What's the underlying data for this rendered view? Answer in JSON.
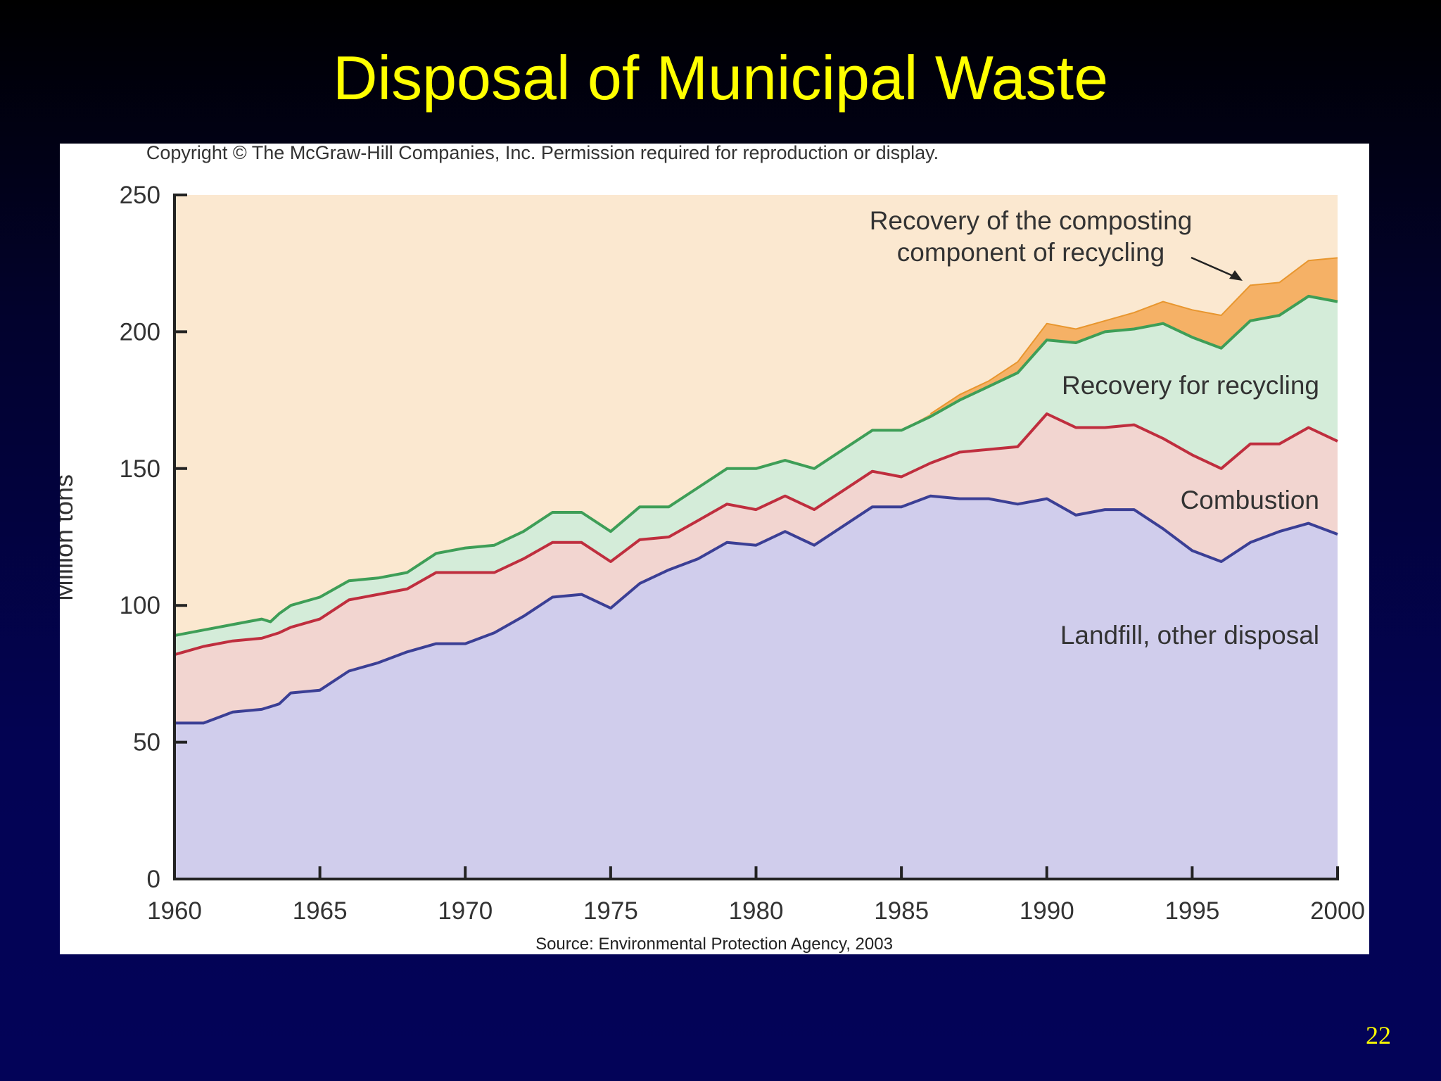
{
  "slide": {
    "title": "Disposal of Municipal Waste",
    "page_number": "22"
  },
  "figure": {
    "copyright": "Copyright © The McGraw-Hill Companies, Inc. Permission required for reproduction or display.",
    "source": "Source: Environmental Protection Agency, 2003"
  },
  "colors": {
    "landfill_fill": "#d0cdec",
    "landfill_line": "#3b3f95",
    "combustion_fill": "#f2d5d0",
    "combustion_line": "#bf2e3e",
    "recycling_fill": "#d4ecd9",
    "recycling_line": "#3e9e57",
    "composting_fill": "#f5b166",
    "composting_line": "#e8962e",
    "background_fill": "#fbe8d0"
  },
  "chart_data": {
    "type": "area",
    "stacked": true,
    "ylabel": "Million tons",
    "xlabel": "",
    "xlim": [
      1960,
      2000
    ],
    "ylim": [
      0,
      250
    ],
    "x_ticks": [
      "1960",
      "1965",
      "1970",
      "1975",
      "1980",
      "1985",
      "1990",
      "1995",
      "2000"
    ],
    "y_ticks": [
      "0",
      "50",
      "100",
      "150",
      "200",
      "250"
    ],
    "grid": false,
    "legend": "none",
    "annotations": [
      "Recovery of the composting",
      "component of recycling",
      "Recovery for recycling",
      "Combustion",
      "Landfill, other disposal"
    ],
    "x": [
      1960,
      1961,
      1962,
      1963,
      1963.3,
      1963.6,
      1964,
      1965,
      1966,
      1967,
      1968,
      1969,
      1970,
      1971,
      1972,
      1973,
      1974,
      1975,
      1976,
      1977,
      1978,
      1979,
      1980,
      1981,
      1982,
      1983,
      1984,
      1985,
      1986,
      1987,
      1988,
      1989,
      1990,
      1991,
      1992,
      1993,
      1994,
      1995,
      1996,
      1997,
      1998,
      1999,
      2000
    ],
    "series": [
      {
        "name": "Landfill, other disposal",
        "values": [
          57,
          57,
          61,
          62,
          63,
          64,
          68,
          69,
          76,
          79,
          83,
          86,
          86,
          90,
          96,
          103,
          104,
          99,
          108,
          113,
          117,
          123,
          122,
          127,
          122,
          129,
          136,
          136,
          140,
          139,
          139,
          137,
          139,
          133,
          135,
          135,
          128,
          120,
          116,
          123,
          127,
          130,
          126
        ]
      },
      {
        "name": "Combustion",
        "values": [
          82,
          85,
          87,
          88,
          89,
          90,
          92,
          95,
          102,
          104,
          106,
          112,
          112,
          112,
          117,
          123,
          123,
          116,
          124,
          125,
          131,
          137,
          135,
          140,
          135,
          142,
          149,
          147,
          152,
          156,
          157,
          158,
          170,
          165,
          165,
          166,
          161,
          155,
          150,
          159,
          159,
          165,
          160
        ]
      },
      {
        "name": "Recovery for recycling",
        "values": [
          89,
          91,
          93,
          95,
          94,
          97,
          100,
          103,
          109,
          110,
          112,
          119,
          121,
          122,
          127,
          134,
          134,
          127,
          136,
          136,
          143,
          150,
          150,
          153,
          150,
          157,
          164,
          164,
          169,
          175,
          180,
          185,
          197,
          196,
          200,
          201,
          203,
          198,
          194,
          204,
          206,
          213,
          211
        ]
      },
      {
        "name": "Recovery of the composting component of recycling",
        "values": [
          89,
          91,
          93,
          95,
          94,
          97,
          100,
          103,
          109,
          110,
          112,
          119,
          121,
          122,
          127,
          134,
          134,
          127,
          136,
          136,
          143,
          150,
          150,
          153,
          150,
          157,
          164,
          164,
          170,
          177,
          182,
          189,
          203,
          201,
          204,
          207,
          211,
          208,
          206,
          217,
          218,
          226,
          227
        ]
      }
    ]
  }
}
